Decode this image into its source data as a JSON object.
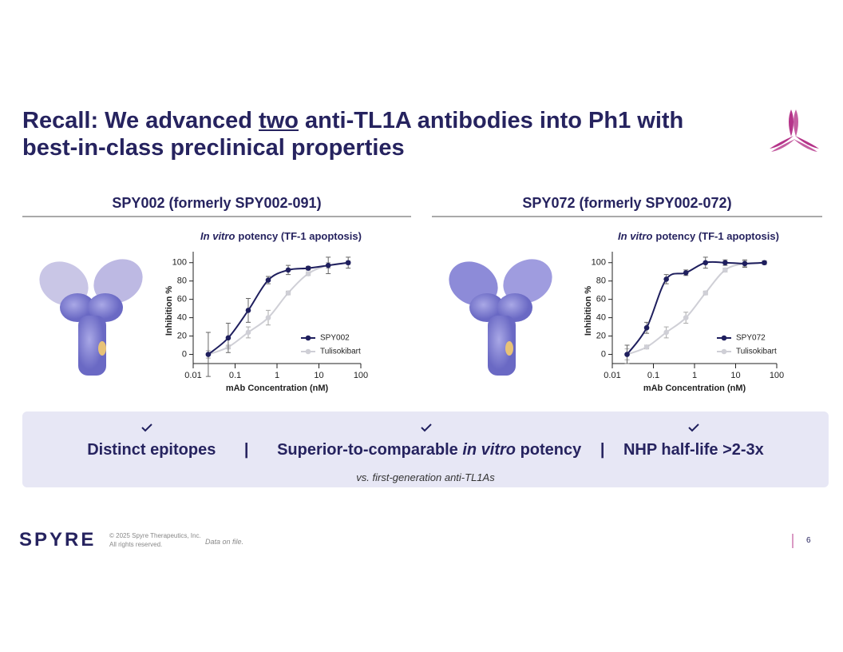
{
  "header": {
    "title": {
      "before": "Recall: We advanced",
      "underlined": "two",
      "after": "anti-TL1A antibodies into Ph1 with",
      "line2": "best-in-class preclinical properties"
    }
  },
  "panels": [
    {
      "heading": "SPY002 (formerly SPY002-091)"
    },
    {
      "heading": "SPY072 (formerly SPY002-072)"
    }
  ],
  "chart_data": [
    {
      "type": "line",
      "subtitle_italic": "In vitro",
      "subtitle": "potency (TF-1 apoptosis)",
      "xlabel": "mAb Concentration (nM)",
      "ylabel": "Inhibition %",
      "x": [
        0.0229,
        0.0686,
        0.206,
        0.617,
        1.85,
        5.56,
        16.7,
        50
      ],
      "xscale": "log",
      "xlim": [
        0.01,
        100
      ],
      "xticks": [
        0.01,
        0.1,
        1,
        10,
        100
      ],
      "ylim": [
        -10,
        105
      ],
      "yticks": [
        0,
        20,
        40,
        60,
        80,
        100
      ],
      "legend": "lower right",
      "series": [
        {
          "name": "SPY002",
          "color": "#1f1f5e",
          "values": [
            0,
            18,
            48,
            81,
            92,
            94,
            97,
            100
          ],
          "errors": [
            24,
            16,
            13,
            4,
            5,
            2,
            9,
            6
          ]
        },
        {
          "name": "Tulisokibart",
          "color": "#cfcfd6",
          "values": [
            0,
            8,
            24,
            40,
            67,
            88,
            97,
            100
          ],
          "errors": [
            4,
            2,
            6,
            8,
            2,
            2,
            3,
            2
          ]
        }
      ]
    },
    {
      "type": "line",
      "subtitle_italic": "In vitro",
      "subtitle": "potency (TF-1 apoptosis)",
      "xlabel": "mAb Concentration (nM)",
      "ylabel": "Inhibition %",
      "x": [
        0.0229,
        0.0686,
        0.206,
        0.617,
        1.85,
        5.56,
        16.7,
        50
      ],
      "xscale": "log",
      "xlim": [
        0.01,
        100
      ],
      "xticks": [
        0.01,
        0.1,
        1,
        10,
        100
      ],
      "ylim": [
        -10,
        105
      ],
      "yticks": [
        0,
        20,
        40,
        60,
        80,
        100
      ],
      "legend": "lower right",
      "series": [
        {
          "name": "SPY072",
          "color": "#1f1f5e",
          "values": [
            0,
            29,
            82,
            89,
            100,
            100,
            99,
            100
          ],
          "errors": [
            10,
            6,
            5,
            3,
            6,
            3,
            4,
            2
          ]
        },
        {
          "name": "Tulisokibart",
          "color": "#cfcfd6",
          "values": [
            0,
            8,
            24,
            40,
            67,
            92,
            99,
            100
          ],
          "errors": [
            6,
            2,
            6,
            6,
            2,
            2,
            3,
            2
          ]
        }
      ]
    }
  ],
  "summary": {
    "items": [
      "Distinct epitopes",
      "Superior-to-comparable",
      "in vitro",
      "potency",
      "NHP half-life >2-3x"
    ],
    "separators": [
      "|",
      "|"
    ],
    "note": "vs. first-generation anti-TL1As"
  },
  "footer": {
    "logo": "SPYRE",
    "copyright": "© 2025 Spyre Therapeutics, Inc.",
    "rights": "All rights reserved.",
    "note": "Data on file.",
    "page": "6"
  }
}
